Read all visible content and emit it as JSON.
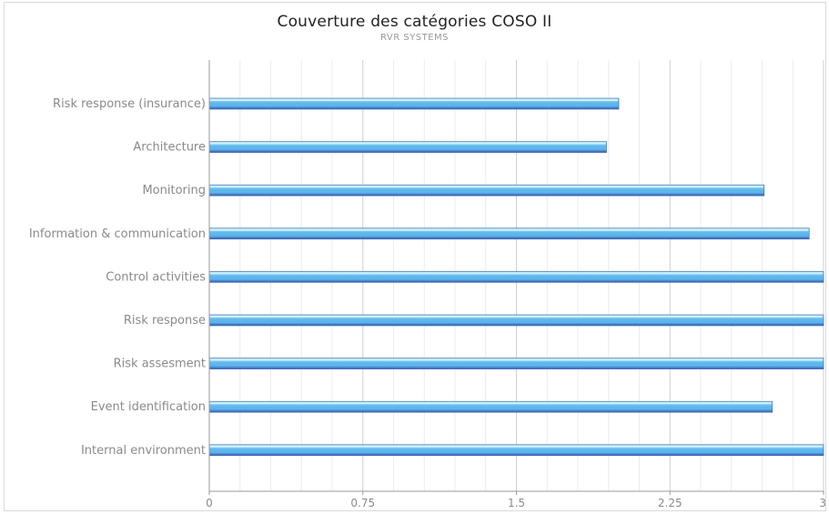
{
  "chart_data": {
    "type": "bar",
    "orientation": "horizontal",
    "title": "Couverture des catégories COSO II",
    "subtitle": "RVR SYSTEMS",
    "categories": [
      "Risk response (insurance)",
      "Architecture",
      "Monitoring",
      "Information & communication",
      "Control activities",
      "Risk response",
      "Risk assesment",
      "Event identification",
      "Internal environment"
    ],
    "values": [
      2.0,
      1.94,
      2.71,
      2.93,
      3.0,
      3.0,
      3.0,
      2.75,
      3.0
    ],
    "xlim": [
      0,
      3
    ],
    "x_ticks": [
      "0",
      "0.75",
      "1.5",
      "2.25",
      "3"
    ],
    "grid": true,
    "legend": "none",
    "colors": {
      "bar_top": "#a9e2f7",
      "bar_mid": "#5ab8ef",
      "bar_bottom": "#3a55b4",
      "grid_major": "#cfcfcf",
      "grid_minor": "#ececec",
      "axis": "#9a9a9a"
    }
  }
}
